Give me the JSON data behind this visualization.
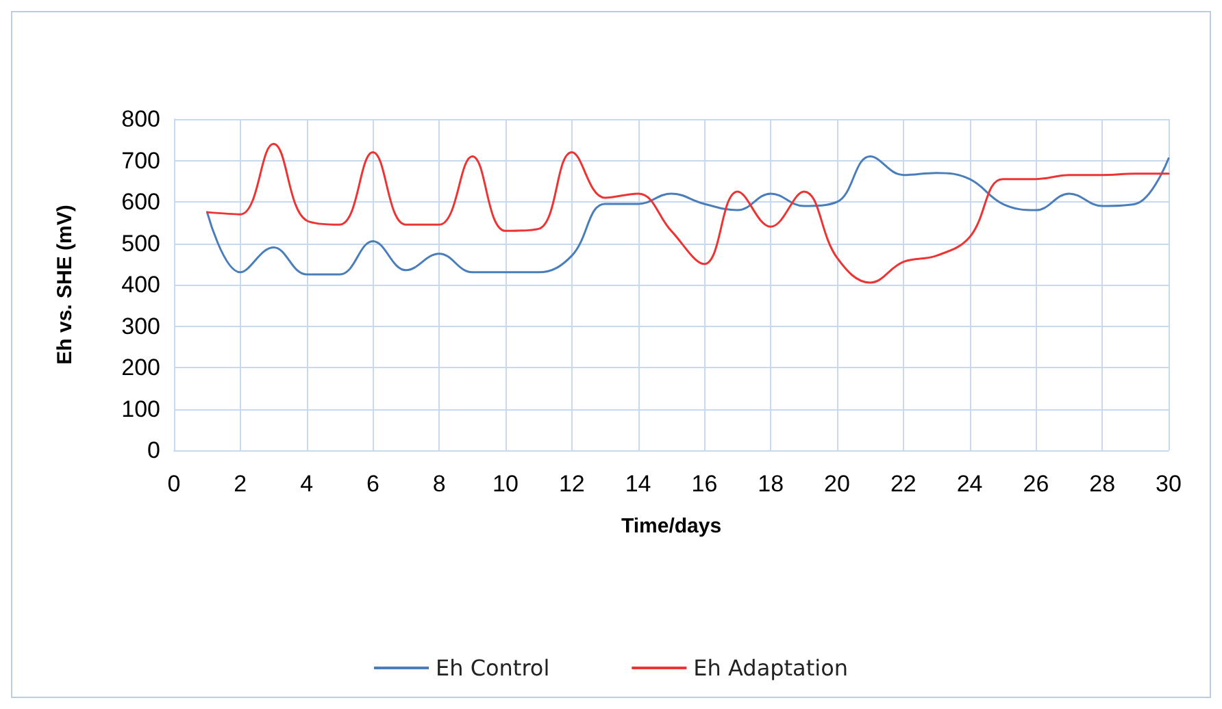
{
  "chart_data": {
    "type": "line",
    "xlabel": "Time/days",
    "ylabel": "Eh vs. SHE (mV)",
    "x": [
      1,
      2,
      3,
      4,
      5,
      6,
      7,
      8,
      9,
      10,
      11,
      12,
      13,
      14,
      15,
      16,
      17,
      18,
      19,
      20,
      21,
      22,
      23,
      24,
      25,
      26,
      27,
      28,
      29,
      30
    ],
    "series": [
      {
        "name": "Eh Control",
        "color": "#4a7ebb",
        "values": [
          575,
          430,
          490,
          425,
          425,
          505,
          435,
          475,
          430,
          430,
          430,
          470,
          595,
          595,
          620,
          595,
          580,
          620,
          590,
          600,
          710,
          665,
          670,
          655,
          595,
          580,
          620,
          590,
          595,
          705
        ]
      },
      {
        "name": "Eh Adaptation",
        "color": "#ee3333",
        "values": [
          575,
          570,
          740,
          555,
          545,
          720,
          545,
          545,
          710,
          530,
          535,
          720,
          610,
          620,
          530,
          450,
          625,
          540,
          625,
          465,
          405,
          455,
          470,
          515,
          655,
          655,
          665,
          665,
          668,
          668
        ]
      }
    ],
    "xlim": [
      0,
      30
    ],
    "xticks": [
      0,
      2,
      4,
      6,
      8,
      10,
      12,
      14,
      16,
      18,
      20,
      22,
      24,
      26,
      28,
      30
    ],
    "ylim": [
      0,
      800
    ],
    "yticks": [
      0,
      100,
      200,
      300,
      400,
      500,
      600,
      700,
      800
    ],
    "grid": true,
    "legend": "bottom",
    "marker": "none",
    "line_style": "solid"
  }
}
